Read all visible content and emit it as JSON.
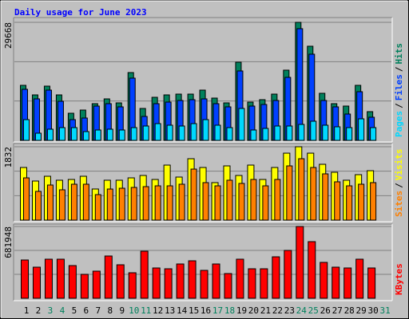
{
  "chart_data": [
    {
      "type": "bar",
      "title": "Daily usage for June 2023",
      "ylim": [
        0,
        29668
      ],
      "yticks": [
        29668
      ],
      "grid_divisions": 3,
      "legend_separator": "/",
      "series": [
        {
          "name": "Hits",
          "color": "#00805c",
          "values": [
            13834,
            11428,
            13634,
            11428,
            6817,
            7619,
            9223,
            10426,
            9423,
            17042,
            8020,
            10827,
            11428,
            11629,
            11629,
            12631,
            10626,
            9423,
            19649,
            9624,
            10225,
            11629,
            17644,
            29668,
            23659,
            11829,
            9223,
            8621,
            13834,
            7218,
            null
          ]
        },
        {
          "name": "Files",
          "color": "#0040ff",
          "values": [
            12832,
            10426,
            12631,
            9824,
            5213,
            5614,
            8621,
            9223,
            8421,
            15639,
            6015,
            9223,
            9624,
            10025,
            10225,
            10426,
            9223,
            8421,
            17443,
            8621,
            9022,
            10025,
            15839,
            28070,
            21654,
            10025,
            8421,
            6616,
            12230,
            5814,
            null
          ]
        },
        {
          "name": "Pages",
          "color": "#00d8ff",
          "values": [
            5213,
            1804,
            2807,
            3208,
            3208,
            2205,
            2606,
            2807,
            2606,
            3208,
            3609,
            4210,
            3809,
            3609,
            4210,
            5213,
            3809,
            3208,
            8020,
            2606,
            3007,
            3609,
            3609,
            4010,
            4812,
            3809,
            3408,
            3208,
            5413,
            3208,
            null
          ]
        }
      ]
    },
    {
      "type": "bar",
      "ylim": [
        0,
        1832
      ],
      "yticks": [
        1832
      ],
      "grid_divisions": 3,
      "legend_separator": "/",
      "series": [
        {
          "name": "Visits",
          "color": "#ffff00",
          "values": [
            1314,
            976,
            1095,
            996,
            1015,
            1095,
            777,
            996,
            996,
            1055,
            1115,
            1015,
            1374,
            1075,
            1533,
            1314,
            936,
            1354,
            1115,
            1374,
            1015,
            1314,
            1672,
            1832,
            1672,
            1394,
            1195,
            996,
            1135,
            1234,
            null
          ]
        },
        {
          "name": "Sites",
          "color": "#ff8000",
          "values": [
            1055,
            717,
            876,
            757,
            896,
            896,
            637,
            776,
            796,
            816,
            836,
            856,
            856,
            896,
            1274,
            936,
            856,
            996,
            916,
            1015,
            856,
            1015,
            1354,
            1533,
            1314,
            1155,
            956,
            856,
            896,
            936,
            null
          ]
        }
      ]
    },
    {
      "type": "bar",
      "ylim": [
        0,
        681948
      ],
      "yticks": [
        681948
      ],
      "grid_divisions": 3,
      "categories": [
        "1",
        "2",
        "3",
        "4",
        "5",
        "6",
        "7",
        "8",
        "9",
        "10",
        "11",
        "12",
        "13",
        "14",
        "15",
        "16",
        "17",
        "18",
        "19",
        "20",
        "21",
        "22",
        "23",
        "24",
        "25",
        "26",
        "27",
        "28",
        "29",
        "30",
        "31"
      ],
      "label_colors": [
        "#000000",
        "#000000",
        "#00805c",
        "#00805c",
        "#000000",
        "#000000",
        "#000000",
        "#000000",
        "#000000",
        "#00805c",
        "#00805c",
        "#000000",
        "#000000",
        "#000000",
        "#000000",
        "#000000",
        "#00805c",
        "#00805c",
        "#000000",
        "#000000",
        "#000000",
        "#000000",
        "#000000",
        "#00805c",
        "#00805c",
        "#000000",
        "#000000",
        "#000000",
        "#000000",
        "#000000",
        "#00805c"
      ],
      "series": [
        {
          "name": "KBytes",
          "color": "#ff0000",
          "values": [
            363696,
            295503,
            371273,
            371273,
            310657,
            227310,
            257618,
            401581,
            318234,
            242464,
            447043,
            287926,
            280349,
            325811,
            356119,
            265195,
            325811,
            234887,
            371273,
            280349,
            280349,
            394004,
            454620,
            681948,
            537967,
            340965,
            295503,
            287926,
            371273,
            287926,
            null
          ]
        }
      ]
    }
  ]
}
